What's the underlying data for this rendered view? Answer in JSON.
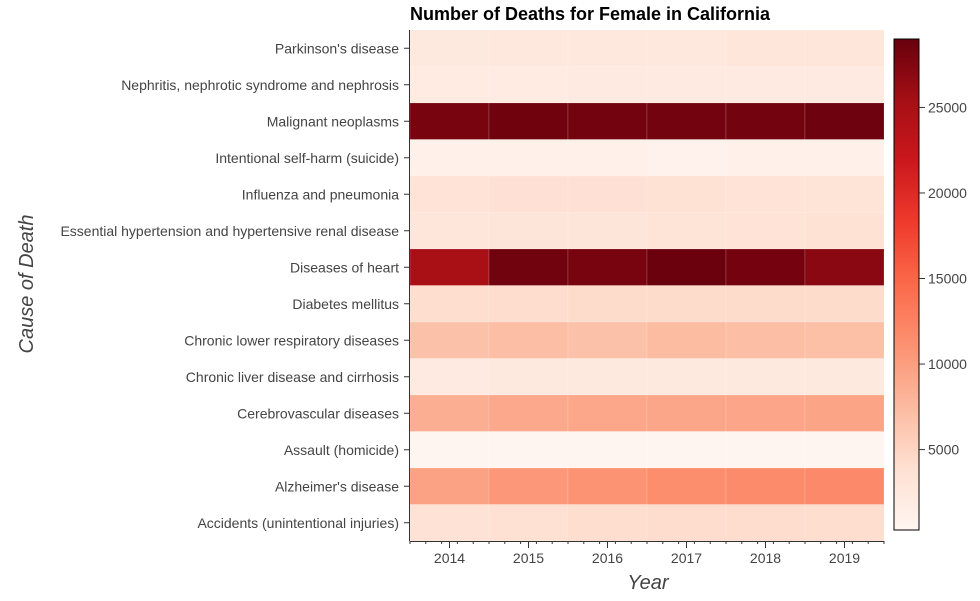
{
  "chart_data": {
    "type": "heatmap",
    "title": "Number of Deaths for Female in California",
    "xlabel": "Year",
    "ylabel": "Cause of Death",
    "x": [
      "2014",
      "2015",
      "2016",
      "2017",
      "2018",
      "2019"
    ],
    "y": [
      "Parkinson's disease",
      "Nephritis, nephrotic syndrome and nephrosis",
      "Malignant neoplasms",
      "Intentional self-harm (suicide)",
      "Influenza and pneumonia",
      "Essential hypertension and hypertensive renal disease",
      "Diseases of heart",
      "Diabetes mellitus",
      "Chronic lower respiratory diseases",
      "Chronic liver disease and cirrhosis",
      "Cerebrovascular diseases",
      "Assault (homicide)",
      "Alzheimer's disease",
      "Accidents (unintentional injuries)"
    ],
    "values": [
      [
        2400,
        2500,
        2600,
        2700,
        2800,
        2900
      ],
      [
        2000,
        2000,
        2100,
        2100,
        2100,
        2200
      ],
      [
        28000,
        28500,
        28300,
        28300,
        28300,
        28600
      ],
      [
        1000,
        1000,
        1000,
        900,
        1000,
        1000
      ],
      [
        3400,
        3700,
        3700,
        3600,
        3400,
        3300
      ],
      [
        2800,
        3000,
        3100,
        3300,
        3400,
        3600
      ],
      [
        25000,
        28400,
        28100,
        28800,
        28200,
        27000
      ],
      [
        4100,
        4200,
        4300,
        4300,
        4300,
        4300
      ],
      [
        6900,
        7200,
        6900,
        7400,
        7100,
        7000
      ],
      [
        2200,
        2300,
        2400,
        2400,
        2400,
        2400
      ],
      [
        8600,
        9100,
        9200,
        9300,
        9400,
        9500
      ],
      [
        300,
        300,
        300,
        300,
        300,
        300
      ],
      [
        9700,
        10500,
        10900,
        11500,
        11700,
        11900
      ],
      [
        3500,
        3800,
        4100,
        4200,
        4200,
        4100
      ]
    ],
    "colorbar": {
      "min": 300,
      "max": 29000,
      "ticks": [
        5000,
        10000,
        15000,
        20000,
        25000
      ]
    },
    "colormap": [
      "#fff5f0",
      "#fee0d2",
      "#fcbba1",
      "#fc9272",
      "#fb6a4a",
      "#ef3b2c",
      "#cb181d",
      "#a50f15",
      "#67000d"
    ]
  }
}
